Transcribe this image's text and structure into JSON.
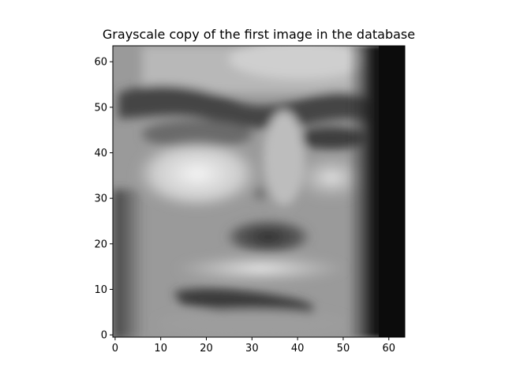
{
  "chart_data": {
    "type": "heatmap",
    "title": "Grayscale copy of the first image in the database",
    "colormap": "gray",
    "image_size": [
      64,
      64
    ],
    "xlim": [
      -0.5,
      63.5
    ],
    "ylim": [
      63.5,
      -0.5
    ],
    "x_ticks": [
      0,
      10,
      20,
      30,
      40,
      50,
      60
    ],
    "y_ticks": [
      0,
      10,
      20,
      30,
      40,
      50,
      60
    ],
    "x_tick_labels": [
      "0",
      "10",
      "20",
      "30",
      "40",
      "50",
      "60"
    ],
    "y_tick_labels": [
      "0",
      "10",
      "20",
      "30",
      "40",
      "50",
      "60"
    ],
    "description": "Grayscale face image shown as a 64x64 pixel array",
    "grid": false
  }
}
